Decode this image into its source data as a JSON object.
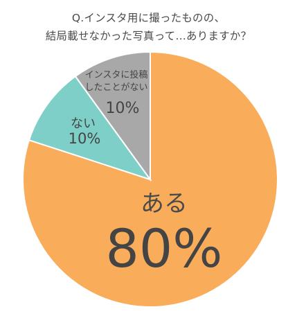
{
  "chart_data": {
    "type": "pie",
    "title_lines": [
      "Q.インスタ用に撮ったものの、",
      "結局載せなかった写真って…ありますか？"
    ],
    "slices": [
      {
        "label": "ある",
        "value": 80,
        "value_label": "80%",
        "color": "#f9ad5b"
      },
      {
        "label": "ない",
        "value": 10,
        "value_label": "10%",
        "color": "#7ecfc8"
      },
      {
        "label_lines": [
          "インスタに投稿",
          "したことがない"
        ],
        "value": 10,
        "value_label": "10%",
        "color": "#a8a8a8"
      }
    ],
    "start_angle_deg": 0,
    "direction": "clockwise"
  }
}
